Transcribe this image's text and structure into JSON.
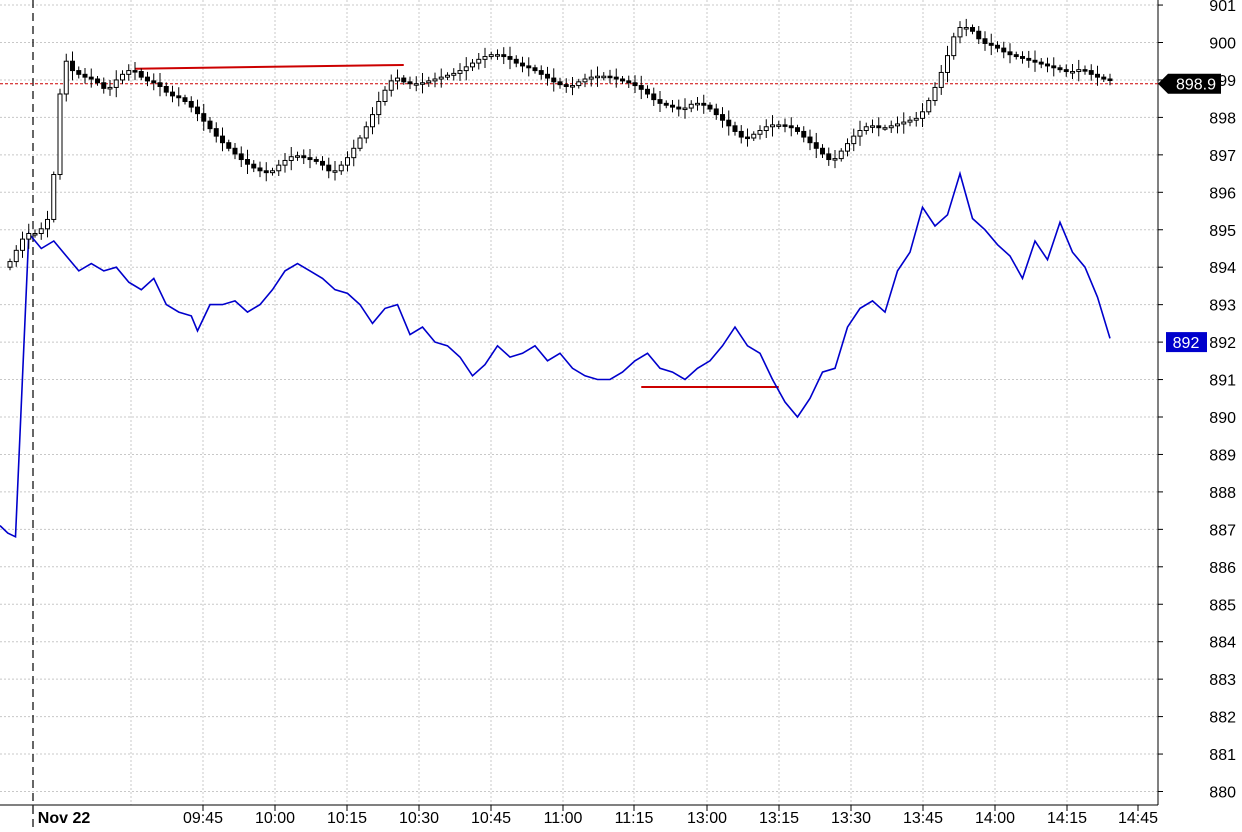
{
  "chart_data": {
    "type": "line",
    "title": "",
    "xlabel": "",
    "ylabel": "",
    "ylim": [
      879.6,
      901.3
    ],
    "y_ticks": [
      880,
      881,
      882,
      883,
      884,
      885,
      886,
      887,
      888,
      889,
      890,
      891,
      892,
      893,
      894,
      895,
      896,
      897,
      898,
      899,
      900,
      901
    ],
    "x_ticks": [
      {
        "label": "Nov 22",
        "bold": true
      },
      {
        "label": "09:45"
      },
      {
        "label": "10:00"
      },
      {
        "label": "10:15"
      },
      {
        "label": "10:30"
      },
      {
        "label": "10:45"
      },
      {
        "label": "11:00"
      },
      {
        "label": "11:15"
      },
      {
        "label": "13:00"
      },
      {
        "label": "13:15"
      },
      {
        "label": "13:30"
      },
      {
        "label": "13:45"
      },
      {
        "label": "14:00"
      },
      {
        "label": "14:15"
      },
      {
        "label": "14:45"
      }
    ],
    "session_divider": "Nov 22",
    "reference_level": 898.9,
    "grid": true,
    "colors": {
      "candle_series": "#000000",
      "blue_series": "#0000cc",
      "annotation": "#cc0000",
      "reference_line": "#cc0000",
      "grid": "#c8c8c8"
    },
    "price_label": {
      "value": "898.9",
      "background": "#000000",
      "color": "#ffffff"
    },
    "blue_label": {
      "value": "892",
      "background": "#0000cc",
      "color": "#ffffff"
    },
    "candle_path": [
      [
        0,
        894.0
      ],
      [
        3,
        894.9
      ],
      [
        5,
        894.9
      ],
      [
        7,
        895.4
      ],
      [
        9,
        899.7
      ],
      [
        10,
        899.3
      ],
      [
        12,
        899.1
      ],
      [
        14,
        899.0
      ],
      [
        16,
        898.7
      ],
      [
        18,
        899.1
      ],
      [
        20,
        899.3
      ],
      [
        22,
        899.0
      ],
      [
        24,
        898.9
      ],
      [
        26,
        898.6
      ],
      [
        28,
        898.5
      ],
      [
        30,
        898.2
      ],
      [
        32,
        897.8
      ],
      [
        34,
        897.4
      ],
      [
        36,
        897.1
      ],
      [
        38,
        896.8
      ],
      [
        40,
        896.6
      ],
      [
        42,
        896.5
      ],
      [
        44,
        896.8
      ],
      [
        46,
        897.0
      ],
      [
        48,
        896.9
      ],
      [
        50,
        896.8
      ],
      [
        52,
        896.5
      ],
      [
        54,
        896.8
      ],
      [
        56,
        897.3
      ],
      [
        58,
        897.9
      ],
      [
        60,
        898.6
      ],
      [
        62,
        899.1
      ],
      [
        64,
        898.9
      ],
      [
        66,
        898.9
      ],
      [
        68,
        899.0
      ],
      [
        70,
        899.1
      ],
      [
        72,
        899.2
      ],
      [
        74,
        899.4
      ],
      [
        76,
        899.6
      ],
      [
        78,
        899.7
      ],
      [
        80,
        899.6
      ],
      [
        82,
        899.4
      ],
      [
        84,
        899.3
      ],
      [
        86,
        899.1
      ],
      [
        88,
        898.9
      ],
      [
        90,
        898.8
      ],
      [
        92,
        899.0
      ],
      [
        94,
        899.1
      ],
      [
        96,
        899.1
      ],
      [
        98,
        899.0
      ],
      [
        100,
        898.9
      ],
      [
        102,
        898.7
      ],
      [
        104,
        898.4
      ],
      [
        106,
        898.3
      ],
      [
        108,
        898.2
      ],
      [
        110,
        898.4
      ],
      [
        112,
        898.3
      ],
      [
        114,
        898.0
      ],
      [
        116,
        897.7
      ],
      [
        118,
        897.4
      ],
      [
        120,
        897.6
      ],
      [
        122,
        897.8
      ],
      [
        124,
        897.8
      ],
      [
        126,
        897.7
      ],
      [
        128,
        897.4
      ],
      [
        130,
        897.1
      ],
      [
        132,
        896.8
      ],
      [
        134,
        897.2
      ],
      [
        136,
        897.6
      ],
      [
        138,
        897.8
      ],
      [
        140,
        897.7
      ],
      [
        142,
        897.8
      ],
      [
        144,
        897.9
      ],
      [
        146,
        898.0
      ],
      [
        148,
        898.6
      ],
      [
        150,
        899.4
      ],
      [
        152,
        900.4
      ],
      [
        154,
        900.4
      ],
      [
        156,
        900.0
      ],
      [
        158,
        899.9
      ],
      [
        160,
        899.7
      ],
      [
        162,
        899.6
      ],
      [
        164,
        899.5
      ],
      [
        166,
        899.4
      ],
      [
        168,
        899.3
      ],
      [
        170,
        899.2
      ],
      [
        172,
        899.3
      ],
      [
        174,
        899.1
      ],
      [
        176,
        899.0
      ]
    ],
    "blue_series": [
      [
        0,
        887.1
      ],
      [
        1,
        886.9
      ],
      [
        2,
        886.8
      ],
      [
        3,
        894.9
      ],
      [
        5,
        894.5
      ],
      [
        7,
        894.7
      ],
      [
        9,
        894.3
      ],
      [
        11,
        893.9
      ],
      [
        13,
        894.1
      ],
      [
        15,
        893.9
      ],
      [
        17,
        894.0
      ],
      [
        19,
        893.6
      ],
      [
        21,
        893.4
      ],
      [
        23,
        893.7
      ],
      [
        25,
        893.0
      ],
      [
        27,
        892.8
      ],
      [
        29,
        892.7
      ],
      [
        30,
        892.3
      ],
      [
        32,
        893.0
      ],
      [
        34,
        893.0
      ],
      [
        36,
        893.1
      ],
      [
        38,
        892.8
      ],
      [
        40,
        893.0
      ],
      [
        42,
        893.4
      ],
      [
        44,
        893.9
      ],
      [
        46,
        894.1
      ],
      [
        48,
        893.9
      ],
      [
        50,
        893.7
      ],
      [
        52,
        893.4
      ],
      [
        54,
        893.3
      ],
      [
        56,
        893.0
      ],
      [
        58,
        892.5
      ],
      [
        60,
        892.9
      ],
      [
        62,
        893.0
      ],
      [
        64,
        892.2
      ],
      [
        66,
        892.4
      ],
      [
        68,
        892.0
      ],
      [
        70,
        891.9
      ],
      [
        72,
        891.6
      ],
      [
        74,
        891.1
      ],
      [
        76,
        891.4
      ],
      [
        78,
        891.9
      ],
      [
        80,
        891.6
      ],
      [
        82,
        891.7
      ],
      [
        84,
        891.9
      ],
      [
        86,
        891.5
      ],
      [
        88,
        891.7
      ],
      [
        90,
        891.3
      ],
      [
        92,
        891.1
      ],
      [
        94,
        891.0
      ],
      [
        96,
        891.0
      ],
      [
        98,
        891.2
      ],
      [
        100,
        891.5
      ],
      [
        102,
        891.7
      ],
      [
        104,
        891.3
      ],
      [
        106,
        891.2
      ],
      [
        108,
        891.0
      ],
      [
        110,
        891.3
      ],
      [
        112,
        891.5
      ],
      [
        114,
        891.9
      ],
      [
        116,
        892.4
      ],
      [
        118,
        891.9
      ],
      [
        120,
        891.7
      ],
      [
        122,
        891.0
      ],
      [
        124,
        890.4
      ],
      [
        126,
        890.0
      ],
      [
        128,
        890.5
      ],
      [
        130,
        891.2
      ],
      [
        132,
        891.3
      ],
      [
        134,
        892.4
      ],
      [
        136,
        892.9
      ],
      [
        138,
        893.1
      ],
      [
        140,
        892.8
      ],
      [
        142,
        893.9
      ],
      [
        144,
        894.4
      ],
      [
        146,
        895.6
      ],
      [
        148,
        895.1
      ],
      [
        150,
        895.4
      ],
      [
        152,
        896.5
      ],
      [
        154,
        895.3
      ],
      [
        156,
        895.0
      ],
      [
        158,
        894.6
      ],
      [
        160,
        894.3
      ],
      [
        162,
        893.7
      ],
      [
        164,
        894.7
      ],
      [
        166,
        894.2
      ],
      [
        168,
        895.2
      ],
      [
        170,
        894.4
      ],
      [
        172,
        894.0
      ],
      [
        174,
        893.2
      ],
      [
        176,
        892.1
      ]
    ],
    "annotations": [
      {
        "series": "candles",
        "type": "hline",
        "x_start": 20,
        "x_end": 63,
        "y_start": 899.3,
        "y_end": 899.4
      },
      {
        "series": "blue",
        "type": "hline",
        "x_start": 101,
        "x_end": 123,
        "y_start": 890.8,
        "y_end": 890.8
      }
    ]
  }
}
